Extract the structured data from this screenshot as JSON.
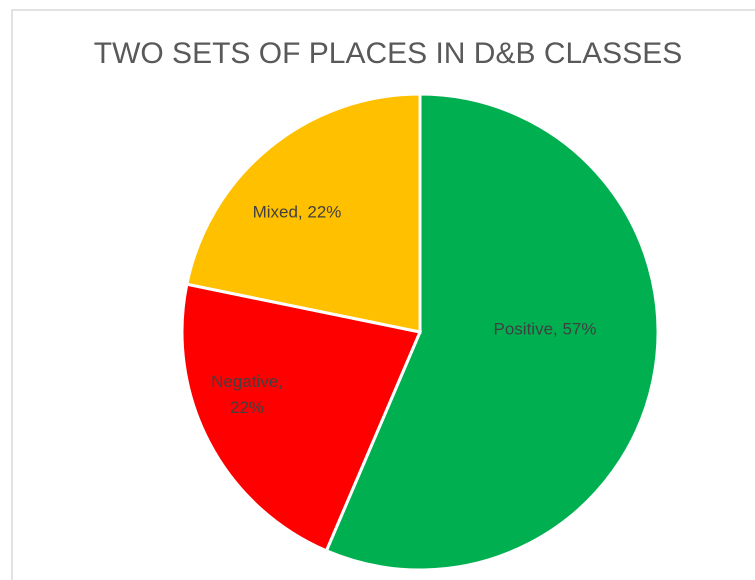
{
  "chart_data": {
    "type": "pie",
    "title": "TWO SETS OF PLACES IN D&B CLASSES",
    "categories": [
      "Positive",
      "Negative",
      "Mixed"
    ],
    "values": [
      57,
      22,
      22
    ],
    "value_labels": [
      "Positive, 57%",
      "Negative, 22%",
      "Mixed, 22%"
    ],
    "colors": [
      "#00b050",
      "#ff0000",
      "#ffc000"
    ]
  }
}
